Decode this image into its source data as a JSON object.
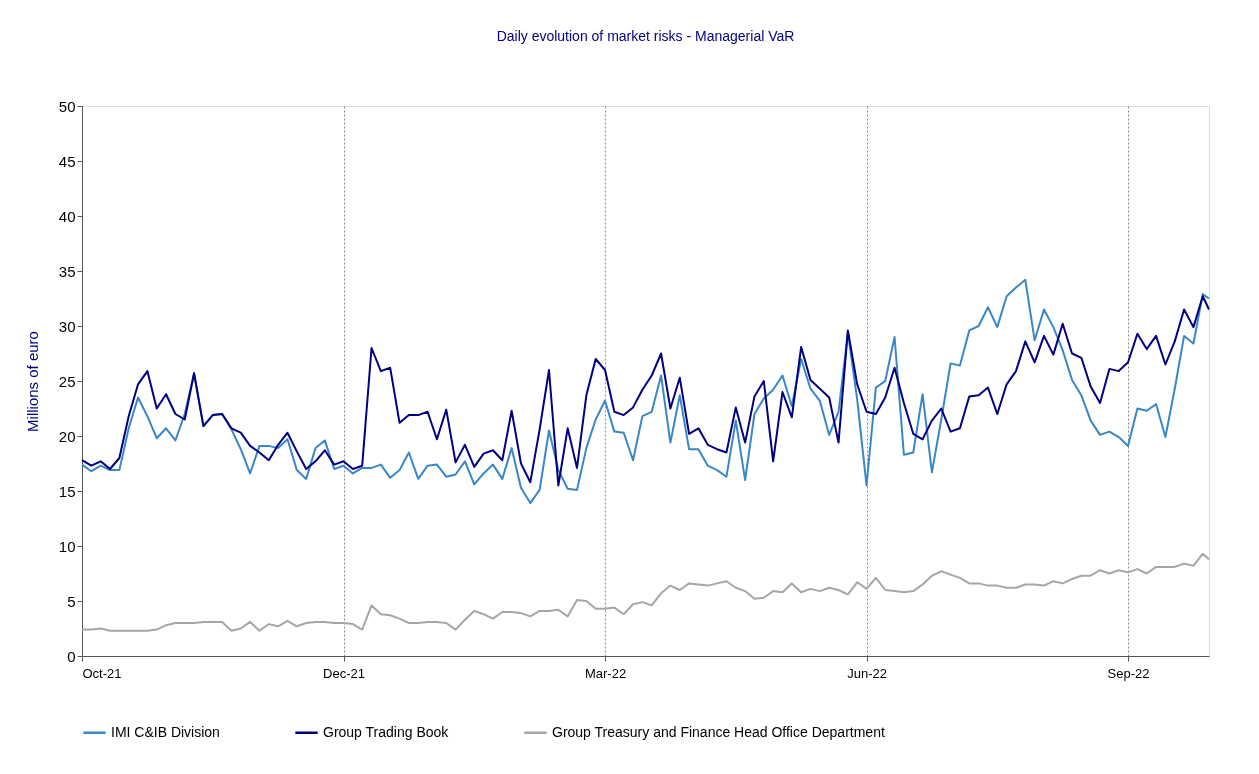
{
  "chart_data": {
    "type": "line",
    "title": "Daily evolution of market risks - Managerial VaR",
    "ylabel": "Millions of euro",
    "xlim": [
      "2021-10-01",
      "2022-09-28"
    ],
    "xticks": [
      {
        "value": "2021-10-01",
        "label": "Oct-21"
      },
      {
        "value": "2021-12-24",
        "label": "Dec-21"
      },
      {
        "value": "2022-03-18",
        "label": "Mar-22"
      },
      {
        "value": "2022-06-10",
        "label": "Jun-22"
      },
      {
        "value": "2022-09-02",
        "label": "Sep-22"
      }
    ],
    "ylim": [
      0,
      50
    ],
    "yticks": [
      0,
      5,
      10,
      15,
      20,
      25,
      30,
      35,
      40,
      45,
      50
    ],
    "grid": "x",
    "legend": "bottom",
    "line_style": "solid",
    "marker": "none",
    "x": [
      "2021-10-01",
      "2021-10-04",
      "2021-10-07",
      "2021-10-10",
      "2021-10-13",
      "2021-10-16",
      "2021-10-19",
      "2021-10-22",
      "2021-10-25",
      "2021-10-28",
      "2021-10-31",
      "2021-11-03",
      "2021-11-06",
      "2021-11-09",
      "2021-11-12",
      "2021-11-15",
      "2021-11-18",
      "2021-11-21",
      "2021-11-24",
      "2021-11-27",
      "2021-11-30",
      "2021-12-03",
      "2021-12-06",
      "2021-12-09",
      "2021-12-12",
      "2021-12-15",
      "2021-12-18",
      "2021-12-21",
      "2021-12-24",
      "2021-12-27",
      "2021-12-30",
      "2022-01-02",
      "2022-01-05",
      "2022-01-08",
      "2022-01-11",
      "2022-01-14",
      "2022-01-17",
      "2022-01-20",
      "2022-01-23",
      "2022-01-26",
      "2022-01-29",
      "2022-02-01",
      "2022-02-04",
      "2022-02-07",
      "2022-02-10",
      "2022-02-13",
      "2022-02-16",
      "2022-02-19",
      "2022-02-22",
      "2022-02-25",
      "2022-02-28",
      "2022-03-03",
      "2022-03-06",
      "2022-03-09",
      "2022-03-12",
      "2022-03-15",
      "2022-03-18",
      "2022-03-21",
      "2022-03-24",
      "2022-03-27",
      "2022-03-30",
      "2022-04-02",
      "2022-04-05",
      "2022-04-08",
      "2022-04-11",
      "2022-04-14",
      "2022-04-17",
      "2022-04-20",
      "2022-04-23",
      "2022-04-26",
      "2022-04-29",
      "2022-05-02",
      "2022-05-05",
      "2022-05-08",
      "2022-05-11",
      "2022-05-14",
      "2022-05-17",
      "2022-05-20",
      "2022-05-23",
      "2022-05-26",
      "2022-05-29",
      "2022-06-01",
      "2022-06-04",
      "2022-06-07",
      "2022-06-10",
      "2022-06-13",
      "2022-06-16",
      "2022-06-19",
      "2022-06-22",
      "2022-06-25",
      "2022-06-28",
      "2022-07-01",
      "2022-07-04",
      "2022-07-07",
      "2022-07-10",
      "2022-07-13",
      "2022-07-16",
      "2022-07-19",
      "2022-07-22",
      "2022-07-25",
      "2022-07-28",
      "2022-07-31",
      "2022-08-03",
      "2022-08-06",
      "2022-08-09",
      "2022-08-12",
      "2022-08-15",
      "2022-08-18",
      "2022-08-21",
      "2022-08-24",
      "2022-08-27",
      "2022-08-30",
      "2022-09-02",
      "2022-09-05",
      "2022-09-08",
      "2022-09-11",
      "2022-09-14",
      "2022-09-17",
      "2022-09-20",
      "2022-09-23",
      "2022-09-26",
      "2022-09-28"
    ],
    "series": [
      {
        "name": "IMI C&IB Division",
        "color": "#3a87c8",
        "values": [
          17.4,
          16.8,
          17.3,
          16.9,
          16.9,
          20.7,
          23.5,
          21.8,
          19.8,
          20.7,
          19.6,
          22.0,
          25.7,
          20.9,
          21.9,
          22.0,
          20.6,
          18.8,
          16.6,
          19.1,
          19.1,
          18.9,
          19.7,
          16.9,
          16.1,
          18.9,
          19.6,
          17.0,
          17.3,
          16.6,
          17.1,
          17.1,
          17.4,
          16.2,
          16.9,
          18.5,
          16.1,
          17.3,
          17.4,
          16.3,
          16.5,
          17.7,
          15.6,
          16.6,
          17.4,
          16.1,
          18.9,
          15.3,
          13.9,
          15.1,
          20.5,
          16.9,
          15.2,
          15.1,
          18.9,
          21.5,
          23.2,
          20.4,
          20.3,
          17.8,
          21.8,
          22.2,
          25.5,
          19.4,
          23.7,
          18.8,
          18.8,
          17.3,
          16.9,
          16.3,
          21.4,
          16.0,
          22.0,
          23.4,
          24.2,
          25.5,
          22.7,
          27.0,
          24.3,
          23.2,
          20.1,
          22.2,
          29.4,
          23.3,
          15.5,
          24.4,
          25.0,
          29.0,
          18.3,
          18.5,
          23.8,
          16.7,
          21.5,
          26.6,
          26.4,
          29.6,
          30.0,
          31.7,
          29.9,
          32.7,
          33.5,
          34.2,
          28.7,
          31.5,
          29.9,
          27.8,
          25.1,
          23.7,
          21.4,
          20.1,
          20.4,
          19.9,
          19.1,
          22.5,
          22.3,
          22.9,
          19.9,
          24.3,
          29.1,
          28.4,
          32.9,
          32.5
        ]
      },
      {
        "name": "Group Trading Book",
        "color": "#000080",
        "values": [
          17.8,
          17.3,
          17.7,
          17.0,
          18.0,
          21.8,
          24.7,
          25.9,
          22.5,
          23.8,
          22.0,
          21.5,
          25.7,
          20.9,
          21.9,
          22.0,
          20.7,
          20.3,
          19.1,
          18.5,
          17.8,
          19.2,
          20.3,
          18.6,
          17.0,
          17.7,
          18.7,
          17.4,
          17.7,
          17.0,
          17.3,
          28.0,
          25.9,
          26.2,
          21.2,
          21.9,
          21.9,
          22.2,
          19.7,
          22.4,
          17.6,
          19.2,
          17.2,
          18.4,
          18.7,
          17.8,
          22.3,
          17.5,
          15.8,
          20.6,
          26.0,
          15.5,
          20.7,
          17.1,
          23.7,
          27.0,
          26.0,
          22.2,
          21.9,
          22.6,
          24.2,
          25.5,
          27.5,
          22.5,
          25.3,
          20.2,
          20.7,
          19.2,
          18.8,
          18.5,
          22.6,
          19.4,
          23.6,
          25.0,
          17.7,
          24.0,
          21.7,
          28.1,
          25.1,
          24.3,
          23.5,
          19.4,
          29.6,
          24.7,
          22.2,
          22.0,
          23.5,
          26.2,
          23.0,
          20.2,
          19.7,
          21.4,
          22.5,
          20.4,
          20.7,
          23.6,
          23.7,
          24.4,
          22.0,
          24.7,
          25.9,
          28.6,
          26.7,
          29.1,
          27.4,
          30.2,
          27.5,
          27.1,
          24.5,
          23.0,
          26.1,
          25.9,
          26.7,
          29.3,
          27.9,
          29.1,
          26.5,
          28.6,
          31.5,
          29.9,
          32.7,
          31.5
        ]
      },
      {
        "name": "Group Treasury and Finance Head Office Department",
        "color": "#a6a6a6",
        "values": [
          2.4,
          2.4,
          2.5,
          2.3,
          2.3,
          2.3,
          2.3,
          2.3,
          2.4,
          2.8,
          3.0,
          3.0,
          3.0,
          3.1,
          3.1,
          3.1,
          2.3,
          2.5,
          3.1,
          2.3,
          2.9,
          2.7,
          3.2,
          2.7,
          3.0,
          3.1,
          3.1,
          3.0,
          3.0,
          2.9,
          2.4,
          4.6,
          3.8,
          3.7,
          3.4,
          3.0,
          3.0,
          3.1,
          3.1,
          3.0,
          2.4,
          3.3,
          4.1,
          3.8,
          3.4,
          4.0,
          4.0,
          3.9,
          3.6,
          4.1,
          4.1,
          4.2,
          3.6,
          5.1,
          5.0,
          4.3,
          4.3,
          4.4,
          3.8,
          4.7,
          4.9,
          4.6,
          5.7,
          6.4,
          6.0,
          6.6,
          6.5,
          6.4,
          6.6,
          6.8,
          6.2,
          5.9,
          5.2,
          5.3,
          5.9,
          5.8,
          6.6,
          5.8,
          6.1,
          5.9,
          6.2,
          6.0,
          5.6,
          6.7,
          6.1,
          7.1,
          6.0,
          5.9,
          5.8,
          5.9,
          6.5,
          7.3,
          7.7,
          7.4,
          7.1,
          6.6,
          6.6,
          6.4,
          6.4,
          6.2,
          6.2,
          6.5,
          6.5,
          6.4,
          6.8,
          6.6,
          7.0,
          7.3,
          7.3,
          7.8,
          7.5,
          7.8,
          7.6,
          7.9,
          7.5,
          8.1,
          8.1,
          8.1,
          8.4,
          8.2,
          9.3,
          8.8
        ]
      }
    ]
  }
}
